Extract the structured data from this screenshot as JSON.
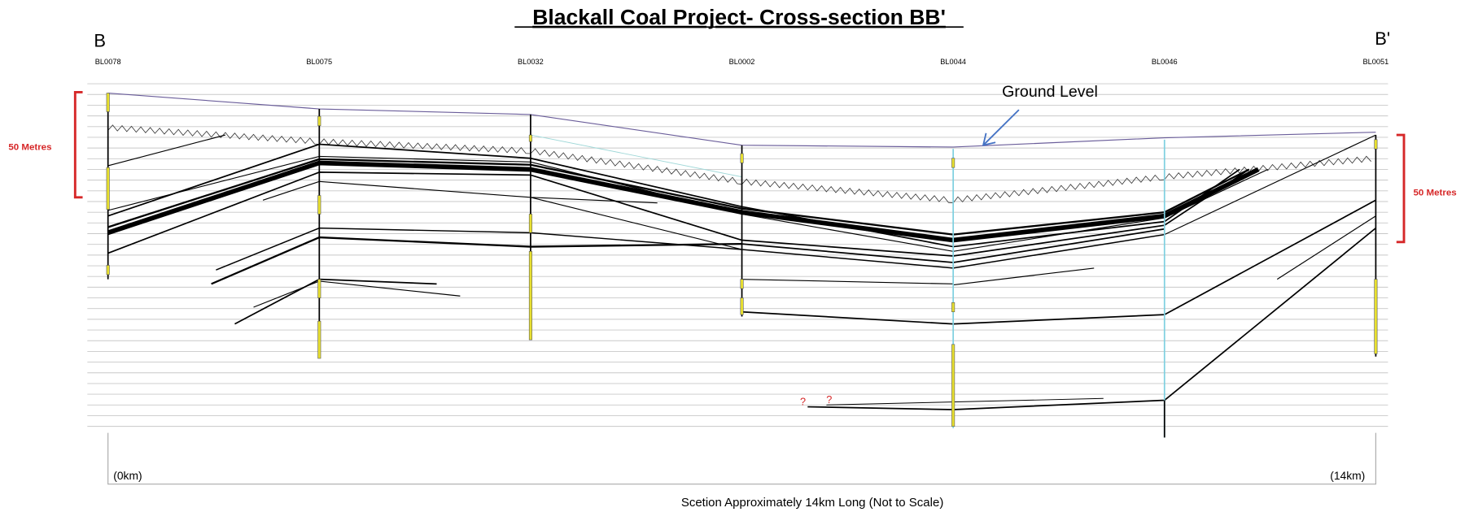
{
  "title": "Blackall Coal Project- Cross-section BB'",
  "left_end": "B",
  "right_end": "B'",
  "boreholes": [
    "BL0078",
    "BL0075",
    "BL0032",
    "BL0002",
    "BL0044",
    "BL0046",
    "BL0051"
  ],
  "ground_label": "Ground Level",
  "scale_left": "50 Metres",
  "scale_right": "50 Metres",
  "question_marks": [
    "?",
    "?"
  ],
  "start_label": "(0km)",
  "end_label": "(14km)",
  "caption": "Scetion Approximately 14km Long (Not to Scale)"
}
